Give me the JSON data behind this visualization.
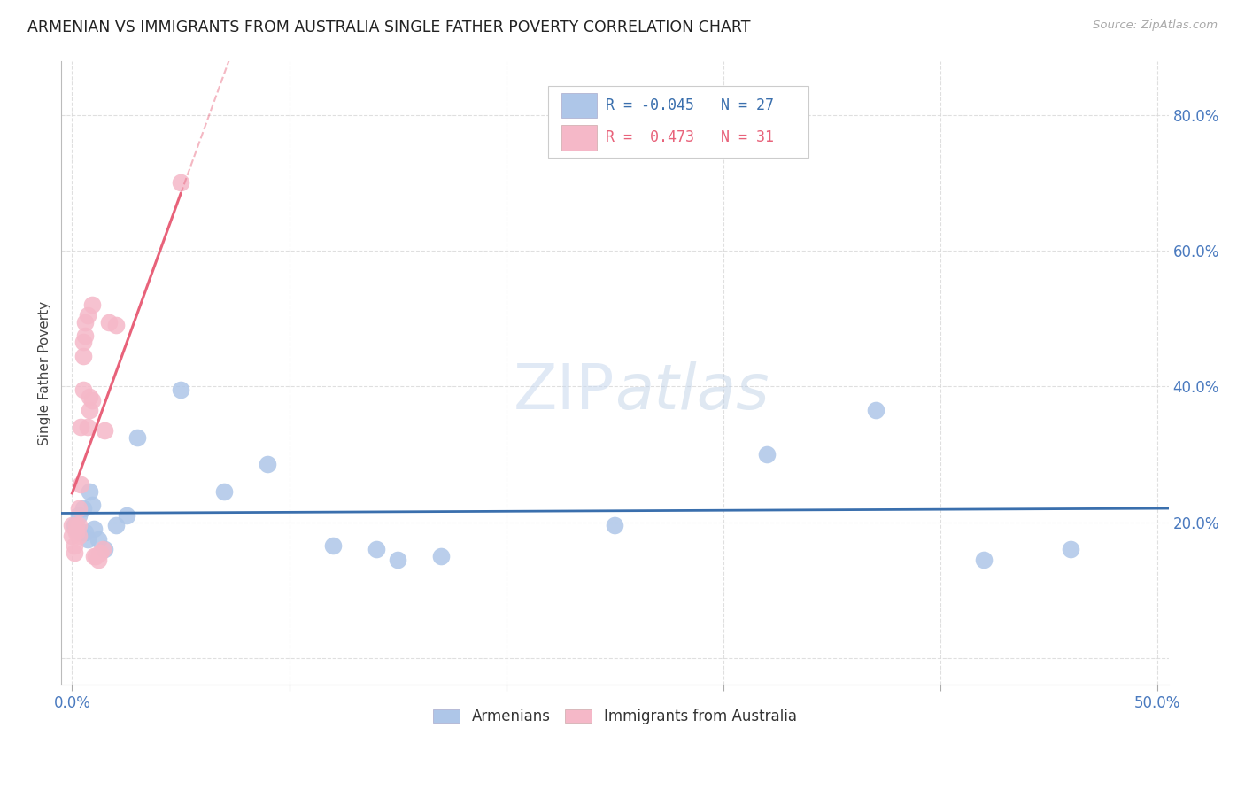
{
  "title": "ARMENIAN VS IMMIGRANTS FROM AUSTRALIA SINGLE FATHER POVERTY CORRELATION CHART",
  "source": "Source: ZipAtlas.com",
  "ylabel": "Single Father Poverty",
  "xlim": [
    -0.005,
    0.505
  ],
  "ylim": [
    -0.04,
    0.88
  ],
  "xticks": [
    0.0,
    0.1,
    0.2,
    0.3,
    0.4,
    0.5
  ],
  "xtick_labels": [
    "0.0%",
    "",
    "",
    "",
    "",
    "50.0%"
  ],
  "yticks": [
    0.0,
    0.2,
    0.4,
    0.6,
    0.8
  ],
  "ytick_labels": [
    "",
    "20.0%",
    "40.0%",
    "60.0%",
    "80.0%"
  ],
  "blue_R": -0.045,
  "blue_N": 27,
  "pink_R": 0.473,
  "pink_N": 31,
  "blue_color": "#aec6e8",
  "pink_color": "#f5b8c8",
  "blue_line_color": "#3a6fad",
  "pink_line_color": "#e8627a",
  "grid_color": "#d8d8d8",
  "blue_points_x": [
    0.001,
    0.002,
    0.003,
    0.004,
    0.005,
    0.006,
    0.007,
    0.008,
    0.009,
    0.01,
    0.012,
    0.015,
    0.02,
    0.025,
    0.03,
    0.05,
    0.07,
    0.09,
    0.12,
    0.14,
    0.15,
    0.17,
    0.25,
    0.32,
    0.37,
    0.42,
    0.46
  ],
  "blue_points_y": [
    0.195,
    0.19,
    0.21,
    0.185,
    0.22,
    0.185,
    0.175,
    0.245,
    0.225,
    0.19,
    0.175,
    0.16,
    0.195,
    0.21,
    0.325,
    0.395,
    0.245,
    0.285,
    0.165,
    0.16,
    0.145,
    0.15,
    0.195,
    0.3,
    0.365,
    0.145,
    0.16
  ],
  "pink_points_x": [
    0.0,
    0.0,
    0.001,
    0.001,
    0.002,
    0.002,
    0.003,
    0.003,
    0.003,
    0.004,
    0.004,
    0.005,
    0.005,
    0.005,
    0.006,
    0.006,
    0.007,
    0.007,
    0.008,
    0.008,
    0.009,
    0.009,
    0.01,
    0.011,
    0.012,
    0.013,
    0.014,
    0.015,
    0.017,
    0.02,
    0.05
  ],
  "pink_points_y": [
    0.195,
    0.18,
    0.165,
    0.155,
    0.195,
    0.185,
    0.18,
    0.195,
    0.22,
    0.255,
    0.34,
    0.395,
    0.445,
    0.465,
    0.475,
    0.495,
    0.34,
    0.505,
    0.365,
    0.385,
    0.52,
    0.38,
    0.15,
    0.15,
    0.145,
    0.155,
    0.16,
    0.335,
    0.495,
    0.49,
    0.7
  ],
  "legend_blue_text": "R = -0.045   N = 27",
  "legend_pink_text": "R =  0.473   N = 31"
}
